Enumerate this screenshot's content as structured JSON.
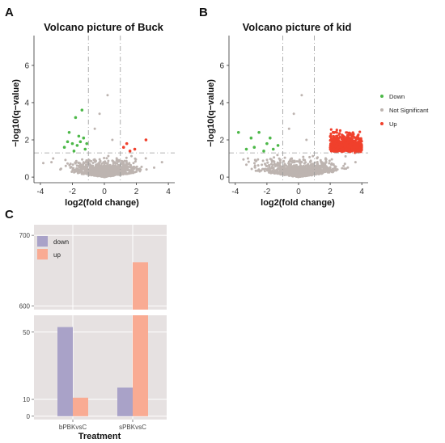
{
  "panels": {
    "a": "A",
    "b": "B",
    "c": "C"
  },
  "legend_ab": {
    "items": [
      {
        "label": "Down",
        "color": "#4cb848"
      },
      {
        "label": "Not Significant",
        "color": "#bdb4b0"
      },
      {
        "label": "Up",
        "color": "#f0402c"
      }
    ]
  },
  "chart_data": [
    {
      "type": "scatter",
      "title": "Volcano picture of Buck",
      "xlabel": "log2(fold change)",
      "ylabel": "−log10(q−value)",
      "xlim": [
        -4.4,
        4.4
      ],
      "ylim": [
        -0.3,
        7.6
      ],
      "x_ticks": [
        "-4",
        "-2",
        "0",
        "2",
        "4"
      ],
      "y_ticks": [
        "0",
        "2",
        "4",
        "6"
      ],
      "threshold_lines": {
        "x": [
          -1,
          1
        ],
        "y": 1.3
      },
      "down_points": [
        [
          -1.8,
          3.2
        ],
        [
          -1.4,
          3.6
        ],
        [
          -2.2,
          2.4
        ],
        [
          -1.6,
          2.2
        ],
        [
          -2.5,
          1.6
        ],
        [
          -2.0,
          1.8
        ],
        [
          -1.5,
          1.9
        ],
        [
          -1.3,
          2.1
        ],
        [
          -1.2,
          1.5
        ],
        [
          -1.9,
          1.4
        ],
        [
          -2.3,
          1.9
        ],
        [
          -1.7,
          1.7
        ],
        [
          -1.1,
          1.8
        ]
      ],
      "up_points": [
        [
          1.4,
          1.8
        ],
        [
          2.6,
          2.0
        ],
        [
          1.9,
          1.5
        ],
        [
          1.2,
          1.6
        ],
        [
          1.6,
          1.4
        ]
      ]
    },
    {
      "type": "scatter",
      "title": "Volcano picture of kid",
      "xlabel": "log2(fold change)",
      "ylabel": "−log10(q−value)",
      "xlim": [
        -4.4,
        4.4
      ],
      "ylim": [
        -0.3,
        7.6
      ],
      "x_ticks": [
        "-4",
        "-2",
        "0",
        "2",
        "4"
      ],
      "y_ticks": [
        "0",
        "2",
        "4",
        "6"
      ],
      "threshold_lines": {
        "x": [
          -1,
          1
        ],
        "y": 1.3
      },
      "down_points": [
        [
          -3.8,
          2.4
        ],
        [
          -3.0,
          2.1
        ],
        [
          -2.5,
          2.4
        ],
        [
          -2.0,
          1.8
        ],
        [
          -1.6,
          1.5
        ],
        [
          -1.3,
          1.7
        ],
        [
          -2.8,
          1.6
        ],
        [
          -1.8,
          2.1
        ],
        [
          -3.3,
          1.5
        ],
        [
          -2.2,
          1.4
        ]
      ],
      "up_summary": "dense cluster of ~660 points between log2FC 2 and 4, -log10(q) 1.3 to 2.6"
    },
    {
      "type": "bar",
      "xlabel": "Treatment",
      "categories": [
        "bPBKvsC",
        "sPBKvsC"
      ],
      "series": [
        {
          "name": "down",
          "color": "#a9a2c8",
          "values": [
            53,
            17
          ]
        },
        {
          "name": "up",
          "color": "#f9ab93",
          "values": [
            11,
            662
          ]
        }
      ],
      "axis_breaks": {
        "upper": {
          "ylim": [
            595,
            715
          ],
          "ticks": [
            600,
            700
          ]
        },
        "lower": {
          "ylim": [
            -2,
            60
          ],
          "ticks": [
            0,
            10,
            50
          ]
        }
      }
    }
  ]
}
